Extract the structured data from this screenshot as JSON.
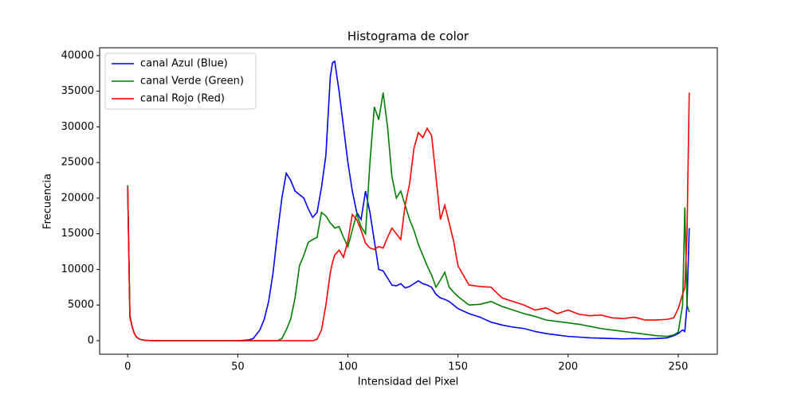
{
  "chart_data": {
    "type": "line",
    "title": "Histograma de color",
    "xlabel": "Intensidad del Pixel",
    "ylabel": "Frecuencia",
    "x": [
      0,
      1,
      2,
      3,
      4,
      5,
      6,
      8,
      10,
      15,
      20,
      30,
      40,
      50,
      55,
      57,
      60,
      62,
      64,
      66,
      68,
      70,
      72,
      74,
      76,
      78,
      80,
      82,
      84,
      86,
      88,
      90,
      92,
      93,
      94,
      96,
      98,
      100,
      102,
      104,
      106,
      108,
      110,
      112,
      114,
      116,
      118,
      120,
      122,
      124,
      126,
      128,
      130,
      132,
      134,
      136,
      138,
      140,
      142,
      144,
      146,
      148,
      150,
      155,
      160,
      165,
      170,
      175,
      180,
      185,
      190,
      195,
      200,
      205,
      210,
      215,
      220,
      225,
      230,
      235,
      240,
      245,
      248,
      250,
      252,
      253,
      254,
      255
    ],
    "series": [
      {
        "name": "canal Azul (Blue)",
        "color": "#0000ff",
        "values": [
          21700,
          3500,
          2000,
          1000,
          500,
          300,
          150,
          50,
          20,
          0,
          0,
          0,
          0,
          0,
          100,
          300,
          1500,
          3000,
          5500,
          9500,
          15000,
          20000,
          23500,
          22500,
          21000,
          20500,
          20000,
          18500,
          17300,
          18000,
          21500,
          26000,
          37000,
          39000,
          39200,
          35000,
          30000,
          25000,
          21000,
          18000,
          17000,
          21000,
          18000,
          14000,
          10000,
          9800,
          8800,
          7800,
          7700,
          8000,
          7400,
          7600,
          8000,
          8400,
          8000,
          7800,
          7500,
          6500,
          6000,
          5800,
          5500,
          5000,
          4500,
          3800,
          3300,
          2600,
          2200,
          1900,
          1700,
          1300,
          1000,
          800,
          600,
          500,
          400,
          350,
          300,
          250,
          300,
          250,
          300,
          400,
          700,
          1000,
          1500,
          1300,
          5000,
          15800
        ]
      },
      {
        "name": "canal Verde (Green)",
        "color": "#008000",
        "values": [
          21800,
          3400,
          2000,
          1000,
          500,
          300,
          150,
          50,
          20,
          0,
          0,
          0,
          0,
          0,
          0,
          0,
          0,
          0,
          0,
          0,
          0,
          300,
          1500,
          3000,
          6000,
          10500,
          12000,
          13800,
          14200,
          14500,
          18000,
          17500,
          16500,
          16200,
          15800,
          16000,
          14500,
          13200,
          15500,
          17800,
          16000,
          15000,
          25000,
          32800,
          31000,
          34800,
          30000,
          23000,
          20000,
          21000,
          19000,
          17000,
          15500,
          13500,
          12000,
          10500,
          9200,
          7500,
          8500,
          9600,
          7500,
          6800,
          6200,
          5000,
          5100,
          5500,
          4800,
          4300,
          3800,
          3400,
          2900,
          2700,
          2500,
          2300,
          2000,
          1700,
          1500,
          1300,
          1100,
          900,
          700,
          600,
          800,
          1200,
          5000,
          18700,
          5000,
          4000
        ]
      },
      {
        "name": "canal Rojo (Red)",
        "color": "#ff0000",
        "values": [
          21500,
          3300,
          2000,
          1000,
          500,
          300,
          150,
          50,
          20,
          0,
          0,
          0,
          0,
          0,
          0,
          0,
          0,
          0,
          0,
          0,
          0,
          0,
          0,
          0,
          0,
          0,
          0,
          0,
          0,
          200,
          1500,
          5000,
          9500,
          11000,
          12000,
          12700,
          11700,
          14000,
          17700,
          17000,
          15500,
          13700,
          13000,
          12800,
          13200,
          13000,
          14500,
          15800,
          15000,
          14200,
          19000,
          22000,
          27000,
          29200,
          28500,
          29800,
          28800,
          23000,
          17000,
          19000,
          16500,
          14000,
          10500,
          7800,
          7600,
          7500,
          6000,
          5500,
          5000,
          4300,
          4600,
          3800,
          4300,
          3700,
          3500,
          3600,
          3200,
          3100,
          3300,
          2900,
          2900,
          3000,
          3200,
          4500,
          6500,
          7500,
          15000,
          34800
        ]
      }
    ],
    "xlim": [
      -12.75,
      267.75
    ],
    "ylim": [
      -1900,
      41100
    ],
    "xticks": [
      0,
      50,
      100,
      150,
      200,
      250
    ],
    "yticks": [
      0,
      5000,
      10000,
      15000,
      20000,
      25000,
      30000,
      35000,
      40000
    ],
    "legend": "upper left"
  }
}
